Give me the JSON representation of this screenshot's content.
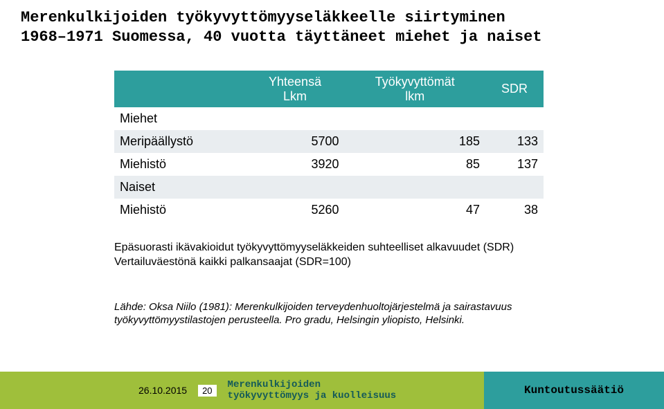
{
  "title_line1": "Merenkulkijoiden työkyvyttömyyseläkkeelle siirtyminen",
  "title_line2": "1968–1971 Suomessa, 40 vuotta täyttäneet miehet ja naiset",
  "table": {
    "headers": {
      "c0": "",
      "c1_l1": "Yhteensä",
      "c1_l2": "Lkm",
      "c2_l1": "Työkyvyttömät",
      "c2_l2": "lkm",
      "c3": "SDR"
    },
    "rows": [
      {
        "label": "Miehet",
        "v1": "",
        "v2": "",
        "v3": ""
      },
      {
        "label": "Meripäällystö",
        "v1": "5700",
        "v2": "185",
        "v3": "133"
      },
      {
        "label": "Miehistö",
        "v1": "3920",
        "v2": "85",
        "v3": "137"
      },
      {
        "label": "Naiset",
        "v1": "",
        "v2": "",
        "v3": ""
      },
      {
        "label": "Miehistö",
        "v1": "5260",
        "v2": "47",
        "v3": "38"
      }
    ]
  },
  "caption_l1": "Epäsuorasti ikävakioidut työkyvyttömyyseläkkeiden suhteelliset alkavuudet (SDR)",
  "caption_l2": "Vertailuväestönä kaikki palkansaajat (SDR=100)",
  "source_l1": "Lähde: Oksa Niilo (1981): Merenkulkijoiden terveydenhuoltojärjestelmä ja sairastavuus",
  "source_l2": "työkyvyttömyystilastojen perusteella. Pro gradu, Helsingin yliopisto, Helsinki.",
  "footer": {
    "date": "26.10.2015",
    "page": "20",
    "ftitle_l1": "Merenkulkijoiden",
    "ftitle_l2": "työkyvyttömyys ja kuolleisuus",
    "brand": "Kuntoutussäätiö"
  },
  "style": {
    "teal": "#2d9e9d",
    "green": "#9fbf3b",
    "row_alt": "#e9edf0"
  }
}
